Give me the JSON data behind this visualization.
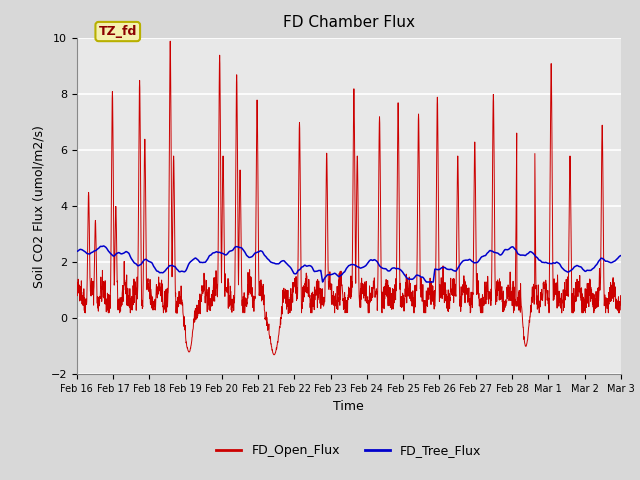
{
  "title": "FD Chamber Flux",
  "xlabel": "Time",
  "ylabel": "Soil CO2 Flux (umol/m2/s)",
  "ylim": [
    -2,
    10
  ],
  "yticks": [
    -2,
    0,
    2,
    4,
    6,
    8,
    10
  ],
  "xtick_labels": [
    "Feb 16",
    "Feb 17",
    "Feb 18",
    "Feb 19",
    "Feb 20",
    "Feb 21",
    "Feb 22",
    "Feb 23",
    "Feb 24",
    "Feb 25",
    "Feb 26",
    "Feb 27",
    "Feb 28",
    "Mar 1",
    "Mar 2",
    "Mar 3"
  ],
  "annotation_text": "TZ_fd",
  "annotation_bg": "#f5f0b0",
  "annotation_border": "#b8b000",
  "annotation_text_color": "#8b0000",
  "open_flux_color": "#cc0000",
  "tree_flux_color": "#0000cc",
  "background_color": "#d8d8d8",
  "plot_bg_color": "#e8e8e8",
  "grid_color": "white",
  "legend_labels": [
    "FD_Open_Flux",
    "FD_Tree_Flux"
  ],
  "n_points": 2400,
  "seed": 42
}
